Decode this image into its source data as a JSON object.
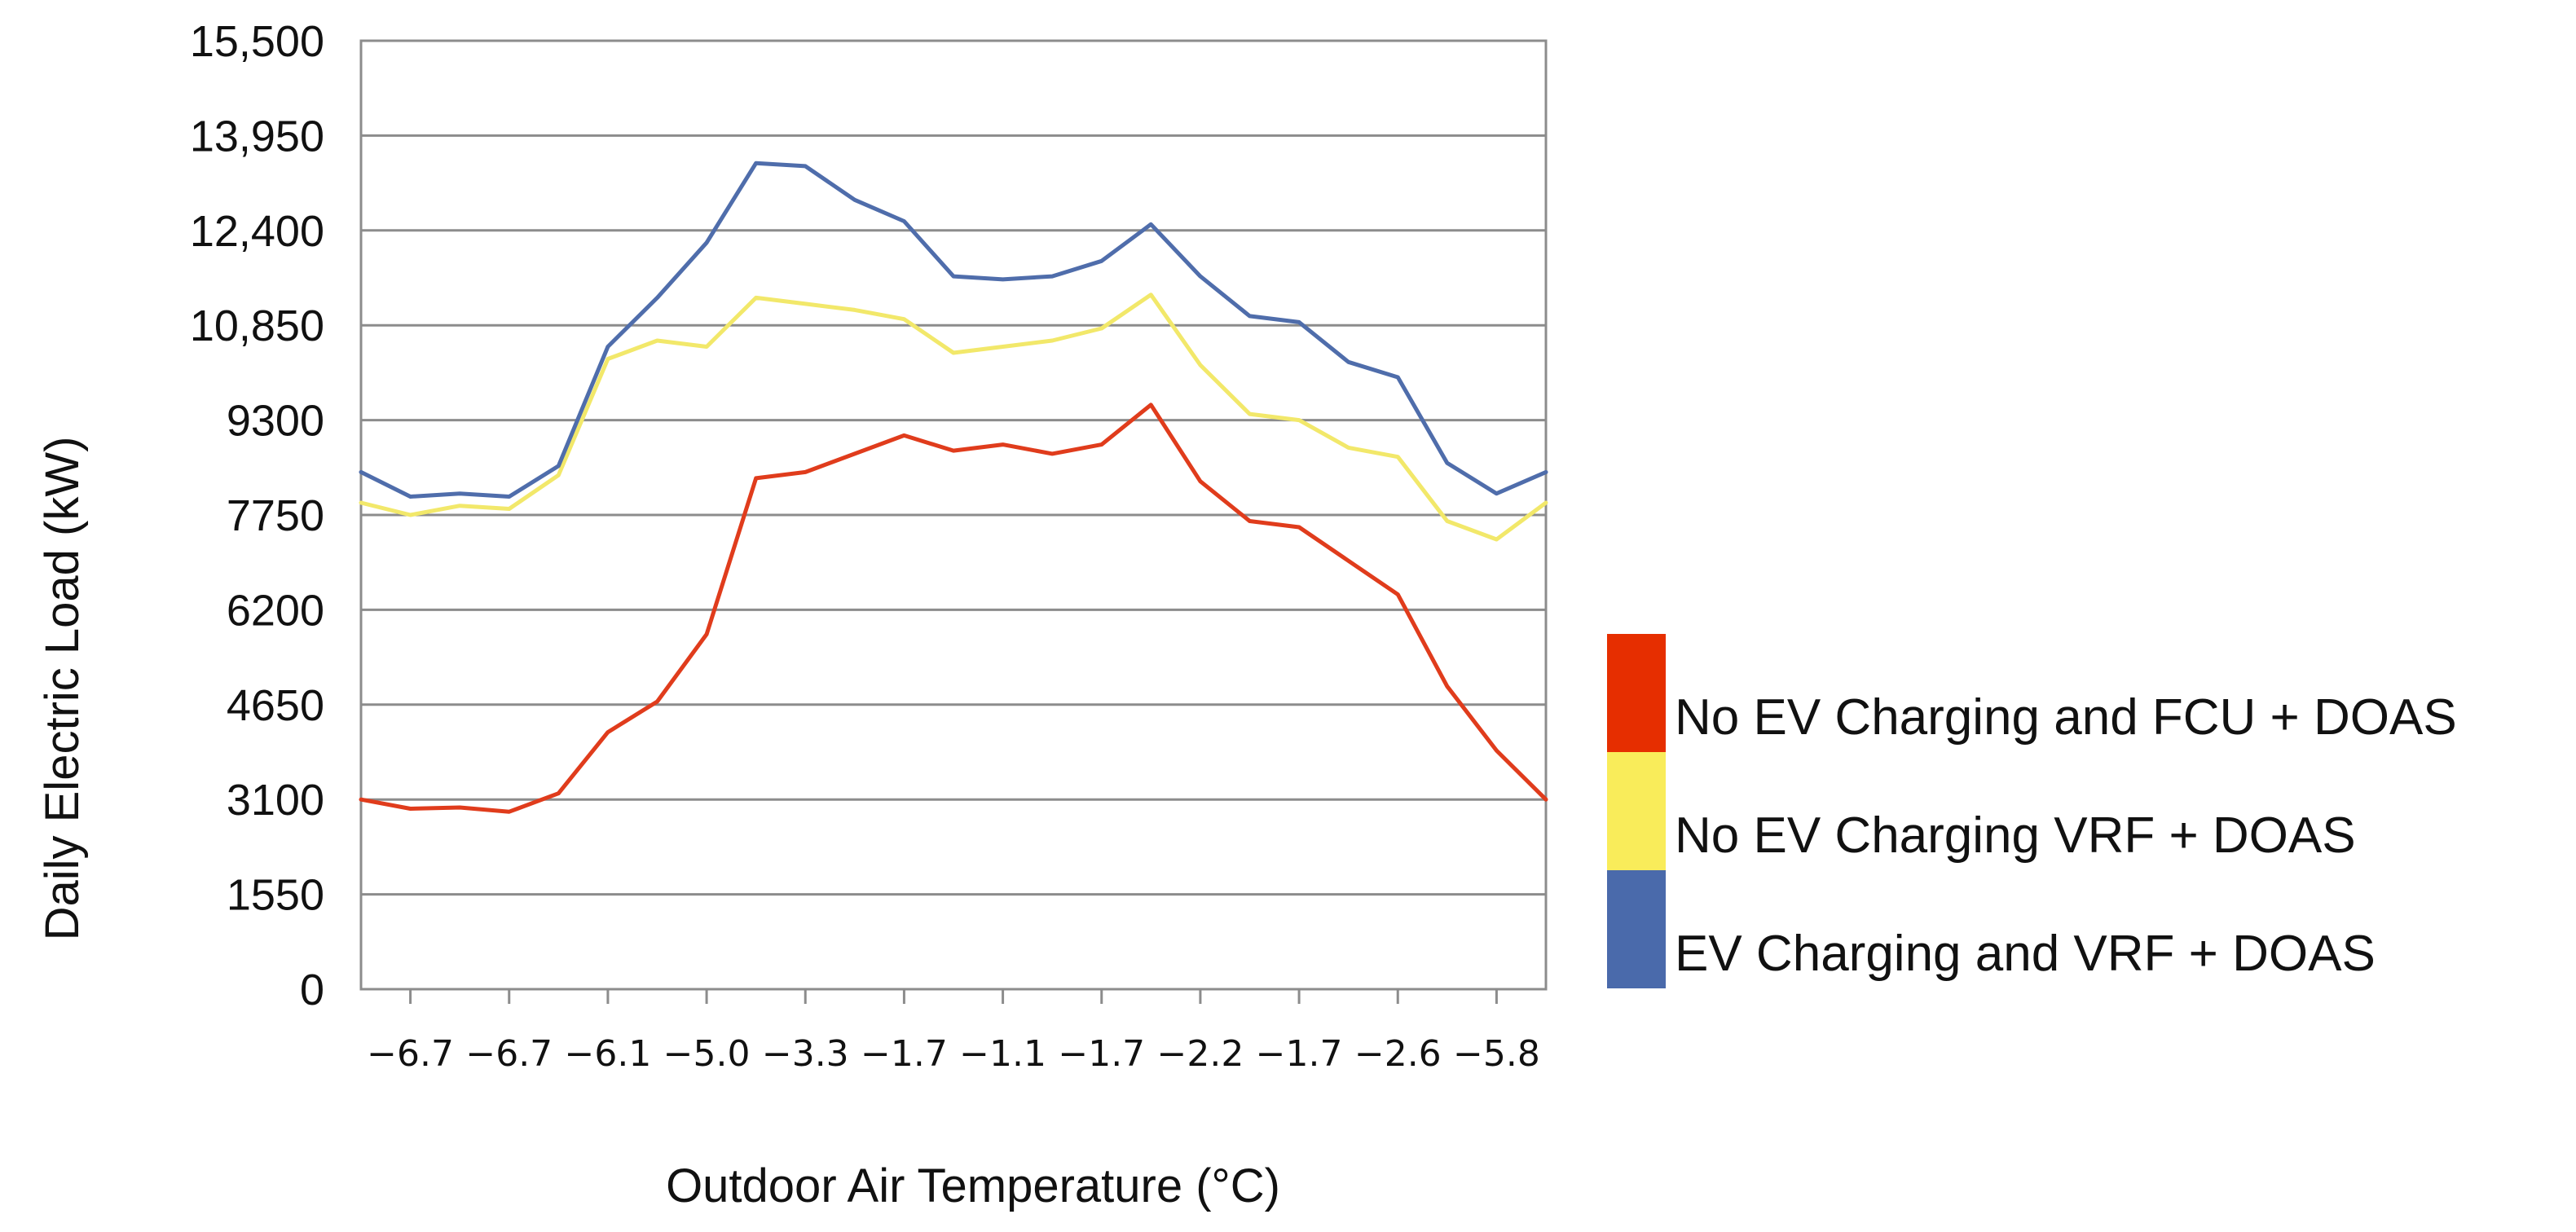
{
  "chart_data": {
    "type": "line",
    "title": "",
    "xlabel": "Outdoor Air Temperature (°C)",
    "ylabel": "Daily Electric Load (kW)",
    "ylim": [
      0,
      15500
    ],
    "yticks": [
      "0",
      "1550",
      "3100",
      "4650",
      "6200",
      "7750",
      "9300",
      "10,850",
      "12,400",
      "13,950",
      "15,500"
    ],
    "ytick_values": [
      0,
      1550,
      3100,
      4650,
      6200,
      7750,
      9300,
      10850,
      12400,
      13950,
      15500
    ],
    "x_labels": [
      "−6.7",
      "−6.7",
      "−6.1",
      "−5.0",
      "−3.3",
      "−1.7",
      "−1.1",
      "−1.7",
      "−2.2",
      "−1.7",
      "−2.6",
      "−5.8"
    ],
    "x_label_indices": [
      1,
      3,
      5,
      7,
      9,
      11,
      13,
      15,
      17,
      19,
      21,
      23
    ],
    "n_points": 25,
    "grid": true,
    "legend_position": "right",
    "series": [
      {
        "name": "No EV Charging and FCU + DOAS",
        "color": "#e03c1c",
        "legend_color": "#e62e00",
        "values": [
          3100,
          2950,
          2970,
          2900,
          3200,
          4200,
          4700,
          5800,
          8350,
          8450,
          8750,
          9050,
          8800,
          8900,
          8750,
          8900,
          9550,
          8300,
          7650,
          7550,
          7000,
          6450,
          4950,
          3900,
          3100
        ]
      },
      {
        "name": "No EV Charging VRF + DOAS",
        "color": "#f2e86a",
        "legend_color": "#f9ec5a",
        "values": [
          7950,
          7750,
          7900,
          7850,
          8400,
          10300,
          10600,
          10500,
          11300,
          11200,
          11100,
          10950,
          10400,
          10500,
          10600,
          10800,
          11350,
          10200,
          9400,
          9300,
          8850,
          8700,
          7650,
          7350,
          7950
        ]
      },
      {
        "name": "EV Charging and VRF + DOAS",
        "color": "#4f6dab",
        "legend_color": "#4a6aab",
        "values": [
          8450,
          8050,
          8100,
          8050,
          8550,
          10500,
          11300,
          12200,
          13500,
          13450,
          12900,
          12550,
          11650,
          11600,
          11650,
          11900,
          12500,
          11650,
          11000,
          10900,
          10250,
          10000,
          8600,
          8100,
          8450
        ]
      }
    ]
  }
}
